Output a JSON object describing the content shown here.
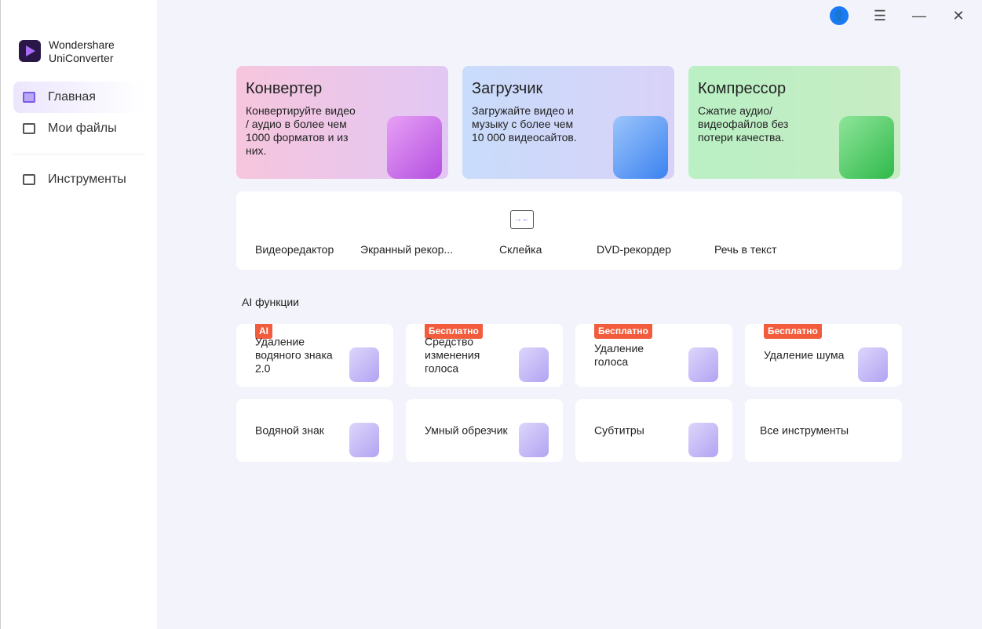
{
  "app": {
    "name_line1": "Wondershare",
    "name_line2": "UniConverter"
  },
  "sidebar": {
    "items": [
      {
        "label": "Главная",
        "active": true
      },
      {
        "label": "Мои файлы"
      },
      {
        "label": "Инструменты"
      }
    ]
  },
  "window": {
    "menu": "☰",
    "minimize": "—",
    "close": "✕",
    "user": "👤"
  },
  "cards": [
    {
      "title": "Конвертер",
      "desc": "Конвертируйте видео / аудио в более чем 1000 форматов и из них."
    },
    {
      "title": "Загрузчик",
      "desc": "Загружайте видео и музыку с более чем 10 000 видеосайтов."
    },
    {
      "title": "Компрессор",
      "desc": "Сжатие аудио/ видеофайлов без потери качества."
    }
  ],
  "tools": [
    "Видеоредактор",
    "Экранный рекор...",
    "Склейка",
    "DVD-рекордер",
    "Речь в текст"
  ],
  "ai_section": "AI функции",
  "features": [
    {
      "label": "Удаление водяного знака 2.0",
      "badge": "AI"
    },
    {
      "label": "Средство изменения голоса",
      "badge": "Бесплатно"
    },
    {
      "label": "Удаление голоса",
      "badge": "Бесплатно"
    },
    {
      "label": "Удаление шума",
      "badge": "Бесплатно"
    },
    {
      "label": "Водяной знак"
    },
    {
      "label": "Умный обрезчик"
    },
    {
      "label": "Субтитры"
    },
    {
      "label": "Все инструменты"
    }
  ]
}
